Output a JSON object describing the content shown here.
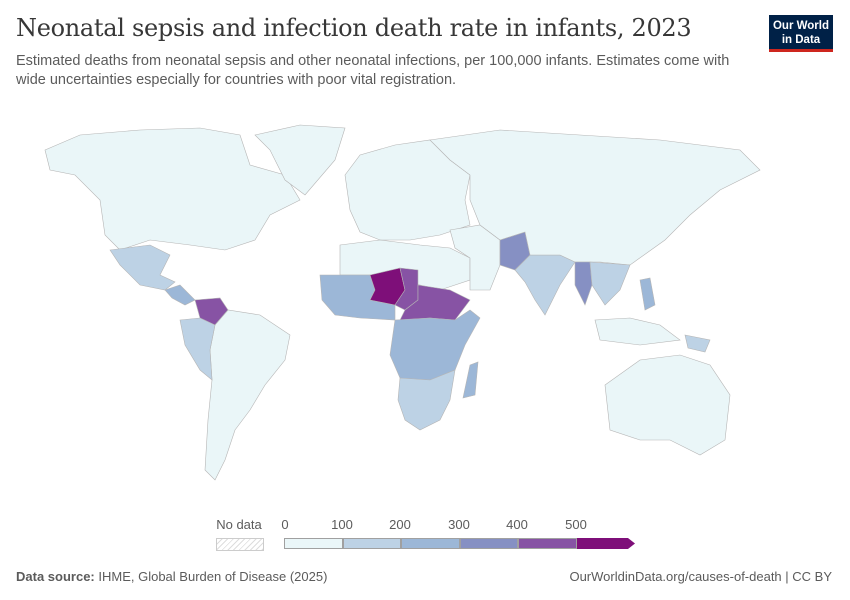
{
  "title": "Neonatal sepsis and infection death rate in infants, 2023",
  "subtitle": "Estimated deaths from neonatal sepsis and other neonatal infections, per 100,000 infants. Estimates come with wide uncertainties especially for countries with poor vital registration.",
  "logo": {
    "line1": "Our World",
    "line2": "in Data"
  },
  "legend": {
    "no_data_label": "No data",
    "ticks": [
      "0",
      "100",
      "200",
      "300",
      "400",
      "500"
    ],
    "bins": [
      {
        "range": "0-100",
        "color": "#eaf6f8"
      },
      {
        "range": "100-200",
        "color": "#bdd2e5"
      },
      {
        "range": "200-300",
        "color": "#9cb7d7"
      },
      {
        "range": "300-400",
        "color": "#8690c3"
      },
      {
        "range": "400-500",
        "color": "#8753a4"
      },
      {
        "range": ">500",
        "color": "#7e0f79"
      }
    ]
  },
  "regions": [
    {
      "name": "north-america",
      "bin": 0
    },
    {
      "name": "greenland",
      "bin": 0
    },
    {
      "name": "mexico",
      "bin": 1
    },
    {
      "name": "central-america",
      "bin": 2
    },
    {
      "name": "venezuela",
      "bin": 4
    },
    {
      "name": "south-america",
      "bin": 0
    },
    {
      "name": "andes",
      "bin": 1
    },
    {
      "name": "europe",
      "bin": 0
    },
    {
      "name": "north-africa",
      "bin": 0
    },
    {
      "name": "west-africa",
      "bin": 2
    },
    {
      "name": "niger",
      "bin": 5
    },
    {
      "name": "chad",
      "bin": 4
    },
    {
      "name": "sahel-east",
      "bin": 4
    },
    {
      "name": "central-africa",
      "bin": 2
    },
    {
      "name": "southern-africa",
      "bin": 1
    },
    {
      "name": "madagascar",
      "bin": 2
    },
    {
      "name": "middle-east",
      "bin": 0
    },
    {
      "name": "pakistan",
      "bin": 3
    },
    {
      "name": "india",
      "bin": 1
    },
    {
      "name": "russia-china",
      "bin": 0
    },
    {
      "name": "myanmar",
      "bin": 3
    },
    {
      "name": "southeast-asia",
      "bin": 1
    },
    {
      "name": "philippines",
      "bin": 2
    },
    {
      "name": "indonesia",
      "bin": 0
    },
    {
      "name": "papua-new-guinea",
      "bin": 1
    },
    {
      "name": "australia",
      "bin": 0
    }
  ],
  "footer": {
    "source_label": "Data source:",
    "source": "IHME, Global Burden of Disease (2025)",
    "link": "OurWorldinData.org/causes-of-death | CC BY"
  }
}
